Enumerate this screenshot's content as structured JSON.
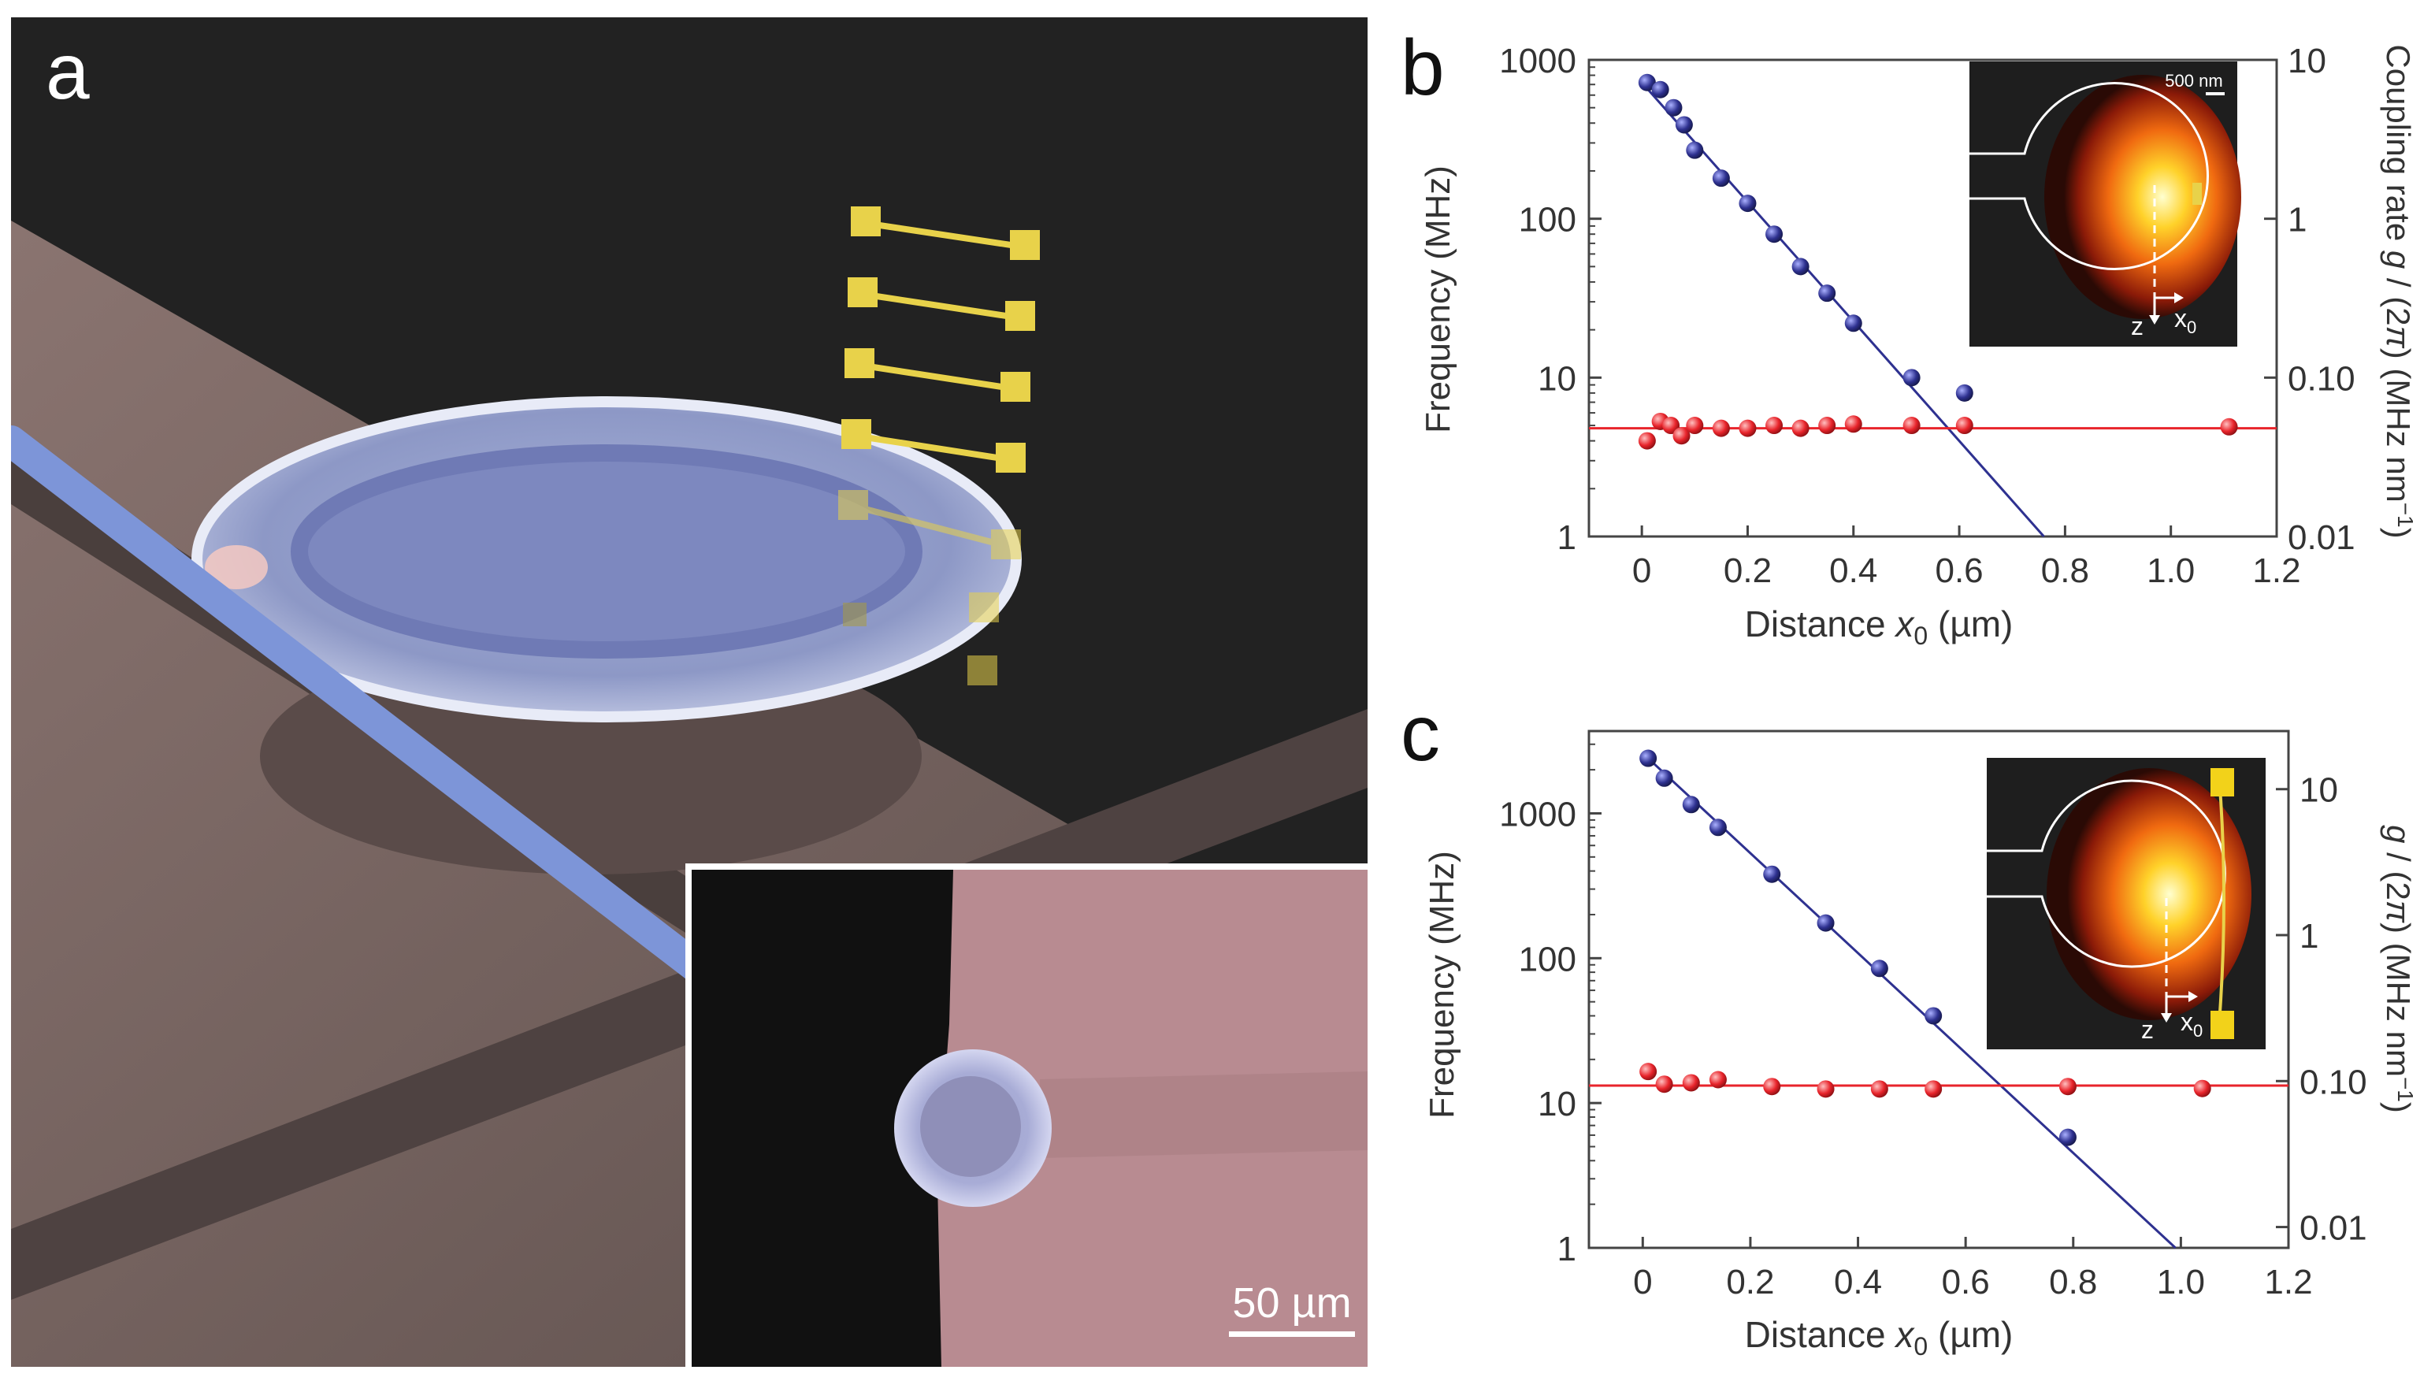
{
  "panels": {
    "a": {
      "label": "a",
      "scalebar_text": "50 µm"
    },
    "b": {
      "label": "b"
    },
    "c": {
      "label": "c"
    }
  },
  "colors": {
    "blue": "#2e3190",
    "red": "#e8242b",
    "background": "#ffffff"
  },
  "chart_data": [
    {
      "type": "scatter",
      "panel": "b",
      "xlabel_main": "Distance ",
      "xlabel_var": "x",
      "xlabel_sub": "0",
      "xlabel_unit": " (µm)",
      "ylabel": "Frequency (MHz)",
      "ylabel2_main": "Coupling rate ",
      "ylabel2_g": "g",
      "ylabel2_rest": " / (2",
      "ylabel2_pi": "π",
      "ylabel2_unit": ") (MHz nm",
      "ylabel2_exp": "−1",
      "ylabel2_close": ")",
      "xlim": [
        -0.1,
        1.2
      ],
      "ylim": [
        1,
        1000
      ],
      "x_ticks": [
        0,
        0.2,
        0.4,
        0.6,
        0.8,
        1.0,
        1.2
      ],
      "x_tick_labels": [
        "0",
        "0.2",
        "0.4",
        "0.6",
        "0.8",
        "1.0",
        "1.2"
      ],
      "y_ticks": [
        1,
        10,
        100,
        1000
      ],
      "y_tick_labels": [
        "1",
        "10",
        "100",
        "1000"
      ],
      "y2_ticks": [
        0.01,
        0.1,
        1,
        10
      ],
      "y2_tick_labels": [
        "0.01",
        "0.10",
        "1",
        "10"
      ],
      "inset": {
        "scalebar_text": "500 nm",
        "axis_z": "z",
        "axis_x_main": "x",
        "axis_x_sub": "0"
      },
      "series": [
        {
          "name": "Frequency",
          "color": "#2e3190",
          "x": [
            0.01,
            0.035,
            0.06,
            0.08,
            0.1,
            0.15,
            0.2,
            0.25,
            0.3,
            0.35,
            0.4,
            0.51,
            0.61
          ],
          "y": [
            720,
            650,
            500,
            390,
            270,
            180,
            125,
            80,
            50,
            34,
            22,
            10,
            8
          ],
          "fit": {
            "x": [
              0.0,
              0.76
            ],
            "y": [
              720,
              1
            ]
          }
        },
        {
          "name": "Coupling rate",
          "color": "#e8242b",
          "x": [
            0.01,
            0.035,
            0.055,
            0.075,
            0.1,
            0.15,
            0.2,
            0.25,
            0.3,
            0.35,
            0.4,
            0.51,
            0.61,
            1.11
          ],
          "y": [
            4.0,
            5.3,
            5.0,
            4.3,
            5.0,
            4.8,
            4.8,
            5.0,
            4.8,
            5.0,
            5.1,
            5.0,
            5.0,
            4.9
          ],
          "fit": {
            "x": [
              -0.1,
              1.2
            ],
            "y": [
              4.8,
              4.8
            ]
          }
        }
      ]
    },
    {
      "type": "scatter",
      "panel": "c",
      "xlabel_main": "Distance ",
      "xlabel_var": "x",
      "xlabel_sub": "0",
      "xlabel_unit": " (µm)",
      "ylabel": "Frequency (MHz)",
      "ylabel2_main": "",
      "ylabel2_g": "g",
      "ylabel2_rest": " / (2",
      "ylabel2_pi": "π",
      "ylabel2_unit": ") (MHz nm",
      "ylabel2_exp": "−1",
      "ylabel2_close": ")",
      "xlim": [
        -0.1,
        1.2
      ],
      "ylim": [
        1,
        3700
      ],
      "x_ticks": [
        0,
        0.2,
        0.4,
        0.6,
        0.8,
        1.0,
        1.2
      ],
      "x_tick_labels": [
        "0",
        "0.2",
        "0.4",
        "0.6",
        "0.8",
        "1.0",
        "1.2"
      ],
      "y_ticks": [
        1,
        10,
        100,
        1000
      ],
      "y_tick_labels": [
        "1",
        "10",
        "100",
        "1000"
      ],
      "y2_ticks": [
        0.01,
        0.1,
        1,
        10
      ],
      "y2_tick_labels": [
        "0.01",
        "0.10",
        "1",
        "10"
      ],
      "inset": {
        "axis_z": "z",
        "axis_x_main": "x",
        "axis_x_sub": "0"
      },
      "series": [
        {
          "name": "Frequency",
          "color": "#2e3190",
          "x": [
            0.01,
            0.04,
            0.09,
            0.14,
            0.24,
            0.34,
            0.44,
            0.54,
            0.79
          ],
          "y": [
            2400,
            1750,
            1150,
            800,
            380,
            175,
            85,
            40,
            5.8
          ],
          "fit": {
            "x": [
              0.0,
              0.99
            ],
            "y": [
              2600,
              1
            ]
          }
        },
        {
          "name": "Coupling rate",
          "color": "#e8242b",
          "x": [
            0.01,
            0.04,
            0.09,
            0.14,
            0.24,
            0.34,
            0.44,
            0.54,
            0.79,
            1.04
          ],
          "y": [
            16.5,
            13.5,
            13.8,
            14.5,
            13.0,
            12.5,
            12.5,
            12.5,
            13.0,
            12.6
          ],
          "fit": {
            "x": [
              -0.1,
              1.2
            ],
            "y": [
              13.2,
              13.2
            ]
          }
        }
      ]
    }
  ]
}
